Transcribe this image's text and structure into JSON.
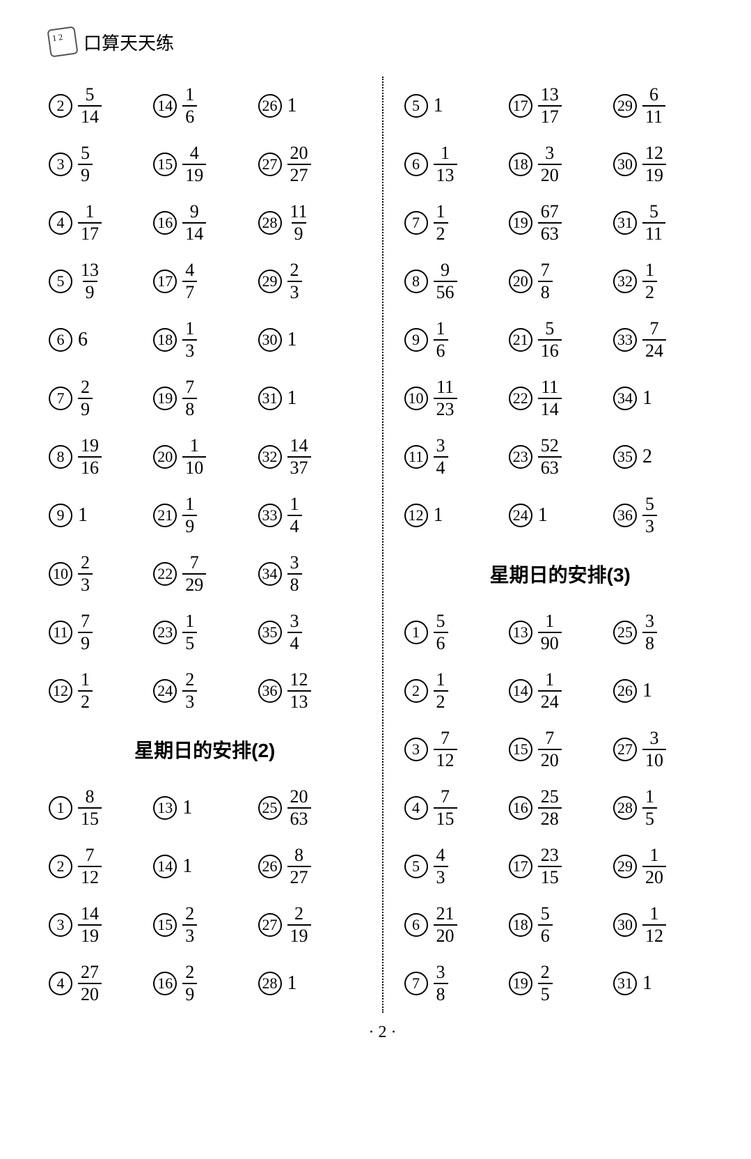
{
  "header_title": "口算天天练",
  "page_number": "· 2 ·",
  "section_title_left": "星期日的安排(2)",
  "section_title_right": "星期日的安排(3)",
  "left_rows": [
    [
      {
        "n": "2",
        "num": "5",
        "den": "14"
      },
      {
        "n": "14",
        "num": "1",
        "den": "6"
      },
      {
        "n": "26",
        "whole": "1"
      }
    ],
    [
      {
        "n": "3",
        "num": "5",
        "den": "9"
      },
      {
        "n": "15",
        "num": "4",
        "den": "19"
      },
      {
        "n": "27",
        "num": "20",
        "den": "27"
      }
    ],
    [
      {
        "n": "4",
        "num": "1",
        "den": "17"
      },
      {
        "n": "16",
        "num": "9",
        "den": "14"
      },
      {
        "n": "28",
        "num": "11",
        "den": "9"
      }
    ],
    [
      {
        "n": "5",
        "num": "13",
        "den": "9"
      },
      {
        "n": "17",
        "num": "4",
        "den": "7"
      },
      {
        "n": "29",
        "num": "2",
        "den": "3"
      }
    ],
    [
      {
        "n": "6",
        "whole": "6"
      },
      {
        "n": "18",
        "num": "1",
        "den": "3"
      },
      {
        "n": "30",
        "whole": "1"
      }
    ],
    [
      {
        "n": "7",
        "num": "2",
        "den": "9"
      },
      {
        "n": "19",
        "num": "7",
        "den": "8"
      },
      {
        "n": "31",
        "whole": "1"
      }
    ],
    [
      {
        "n": "8",
        "num": "19",
        "den": "16"
      },
      {
        "n": "20",
        "num": "1",
        "den": "10"
      },
      {
        "n": "32",
        "num": "14",
        "den": "37"
      }
    ],
    [
      {
        "n": "9",
        "whole": "1"
      },
      {
        "n": "21",
        "num": "1",
        "den": "9"
      },
      {
        "n": "33",
        "num": "1",
        "den": "4"
      }
    ],
    [
      {
        "n": "10",
        "num": "2",
        "den": "3"
      },
      {
        "n": "22",
        "num": "7",
        "den": "29"
      },
      {
        "n": "34",
        "num": "3",
        "den": "8"
      }
    ],
    [
      {
        "n": "11",
        "num": "7",
        "den": "9"
      },
      {
        "n": "23",
        "num": "1",
        "den": "5"
      },
      {
        "n": "35",
        "num": "3",
        "den": "4"
      }
    ],
    [
      {
        "n": "12",
        "num": "1",
        "den": "2"
      },
      {
        "n": "24",
        "num": "2",
        "den": "3"
      },
      {
        "n": "36",
        "num": "12",
        "den": "13"
      }
    ]
  ],
  "left_rows_b": [
    [
      {
        "n": "1",
        "num": "8",
        "den": "15"
      },
      {
        "n": "13",
        "whole": "1"
      },
      {
        "n": "25",
        "num": "20",
        "den": "63"
      }
    ],
    [
      {
        "n": "2",
        "num": "7",
        "den": "12"
      },
      {
        "n": "14",
        "whole": "1"
      },
      {
        "n": "26",
        "num": "8",
        "den": "27"
      }
    ],
    [
      {
        "n": "3",
        "num": "14",
        "den": "19"
      },
      {
        "n": "15",
        "num": "2",
        "den": "3"
      },
      {
        "n": "27",
        "num": "2",
        "den": "19"
      }
    ],
    [
      {
        "n": "4",
        "num": "27",
        "den": "20"
      },
      {
        "n": "16",
        "num": "2",
        "den": "9"
      },
      {
        "n": "28",
        "whole": "1"
      }
    ]
  ],
  "right_rows_a": [
    [
      {
        "n": "5",
        "whole": "1"
      },
      {
        "n": "17",
        "num": "13",
        "den": "17"
      },
      {
        "n": "29",
        "num": "6",
        "den": "11"
      }
    ],
    [
      {
        "n": "6",
        "num": "1",
        "den": "13"
      },
      {
        "n": "18",
        "num": "3",
        "den": "20"
      },
      {
        "n": "30",
        "num": "12",
        "den": "19"
      }
    ],
    [
      {
        "n": "7",
        "num": "1",
        "den": "2"
      },
      {
        "n": "19",
        "num": "67",
        "den": "63"
      },
      {
        "n": "31",
        "num": "5",
        "den": "11"
      }
    ],
    [
      {
        "n": "8",
        "num": "9",
        "den": "56"
      },
      {
        "n": "20",
        "num": "7",
        "den": "8"
      },
      {
        "n": "32",
        "num": "1",
        "den": "2"
      }
    ],
    [
      {
        "n": "9",
        "num": "1",
        "den": "6"
      },
      {
        "n": "21",
        "num": "5",
        "den": "16"
      },
      {
        "n": "33",
        "num": "7",
        "den": "24"
      }
    ],
    [
      {
        "n": "10",
        "num": "11",
        "den": "23"
      },
      {
        "n": "22",
        "num": "11",
        "den": "14"
      },
      {
        "n": "34",
        "whole": "1"
      }
    ],
    [
      {
        "n": "11",
        "num": "3",
        "den": "4"
      },
      {
        "n": "23",
        "num": "52",
        "den": "63"
      },
      {
        "n": "35",
        "whole": "2"
      }
    ],
    [
      {
        "n": "12",
        "whole": "1"
      },
      {
        "n": "24",
        "whole": "1"
      },
      {
        "n": "36",
        "num": "5",
        "den": "3"
      }
    ]
  ],
  "right_rows_b": [
    [
      {
        "n": "1",
        "num": "5",
        "den": "6"
      },
      {
        "n": "13",
        "num": "1",
        "den": "90"
      },
      {
        "n": "25",
        "num": "3",
        "den": "8"
      }
    ],
    [
      {
        "n": "2",
        "num": "1",
        "den": "2"
      },
      {
        "n": "14",
        "num": "1",
        "den": "24"
      },
      {
        "n": "26",
        "whole": "1"
      }
    ],
    [
      {
        "n": "3",
        "num": "7",
        "den": "12"
      },
      {
        "n": "15",
        "num": "7",
        "den": "20"
      },
      {
        "n": "27",
        "num": "3",
        "den": "10"
      }
    ],
    [
      {
        "n": "4",
        "num": "7",
        "den": "15"
      },
      {
        "n": "16",
        "num": "25",
        "den": "28"
      },
      {
        "n": "28",
        "num": "1",
        "den": "5"
      }
    ],
    [
      {
        "n": "5",
        "num": "4",
        "den": "3"
      },
      {
        "n": "17",
        "num": "23",
        "den": "15"
      },
      {
        "n": "29",
        "num": "1",
        "den": "20"
      }
    ],
    [
      {
        "n": "6",
        "num": "21",
        "den": "20"
      },
      {
        "n": "18",
        "num": "5",
        "den": "6"
      },
      {
        "n": "30",
        "num": "1",
        "den": "12"
      }
    ],
    [
      {
        "n": "7",
        "num": "3",
        "den": "8"
      },
      {
        "n": "19",
        "num": "2",
        "den": "5"
      },
      {
        "n": "31",
        "whole": "1"
      }
    ]
  ]
}
